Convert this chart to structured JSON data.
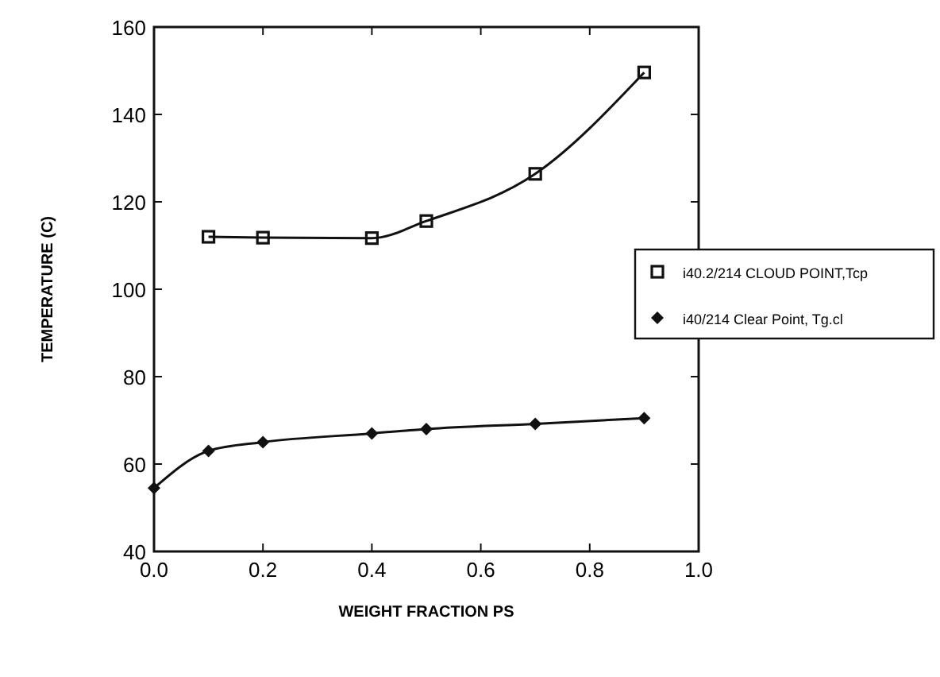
{
  "chart_data": {
    "type": "line",
    "xlabel": "WEIGHT FRACTION PS",
    "ylabel": "TEMPERATURE (C)",
    "xlim": [
      0,
      1
    ],
    "ylim": [
      40,
      160
    ],
    "xticks": [
      {
        "value": 0,
        "label": "0.0"
      },
      0.2,
      0.4,
      0.6,
      0.8,
      {
        "value": 1,
        "label": "1.0"
      }
    ],
    "yticks": [
      40,
      60,
      80,
      100,
      120,
      140,
      160
    ],
    "grid": false,
    "legend": "right",
    "series": [
      {
        "name": "i40.2/214 CLOUD POINT,Tcp",
        "color": "#111111",
        "marker": "square",
        "x": [
          0.1,
          0.2,
          0.4,
          0.5,
          0.7,
          0.9
        ],
        "values": [
          112,
          111.8,
          111.7,
          115.6,
          126.4,
          149.6
        ]
      },
      {
        "name": "i40/214 Clear Point, Tg.cl",
        "color": "#111111",
        "marker": "diamond",
        "x": [
          0,
          0.1,
          0.2,
          0.4,
          0.5,
          0.7,
          0.9
        ],
        "values": [
          54.5,
          63,
          65,
          67,
          68,
          69.2,
          70.5
        ]
      }
    ]
  }
}
